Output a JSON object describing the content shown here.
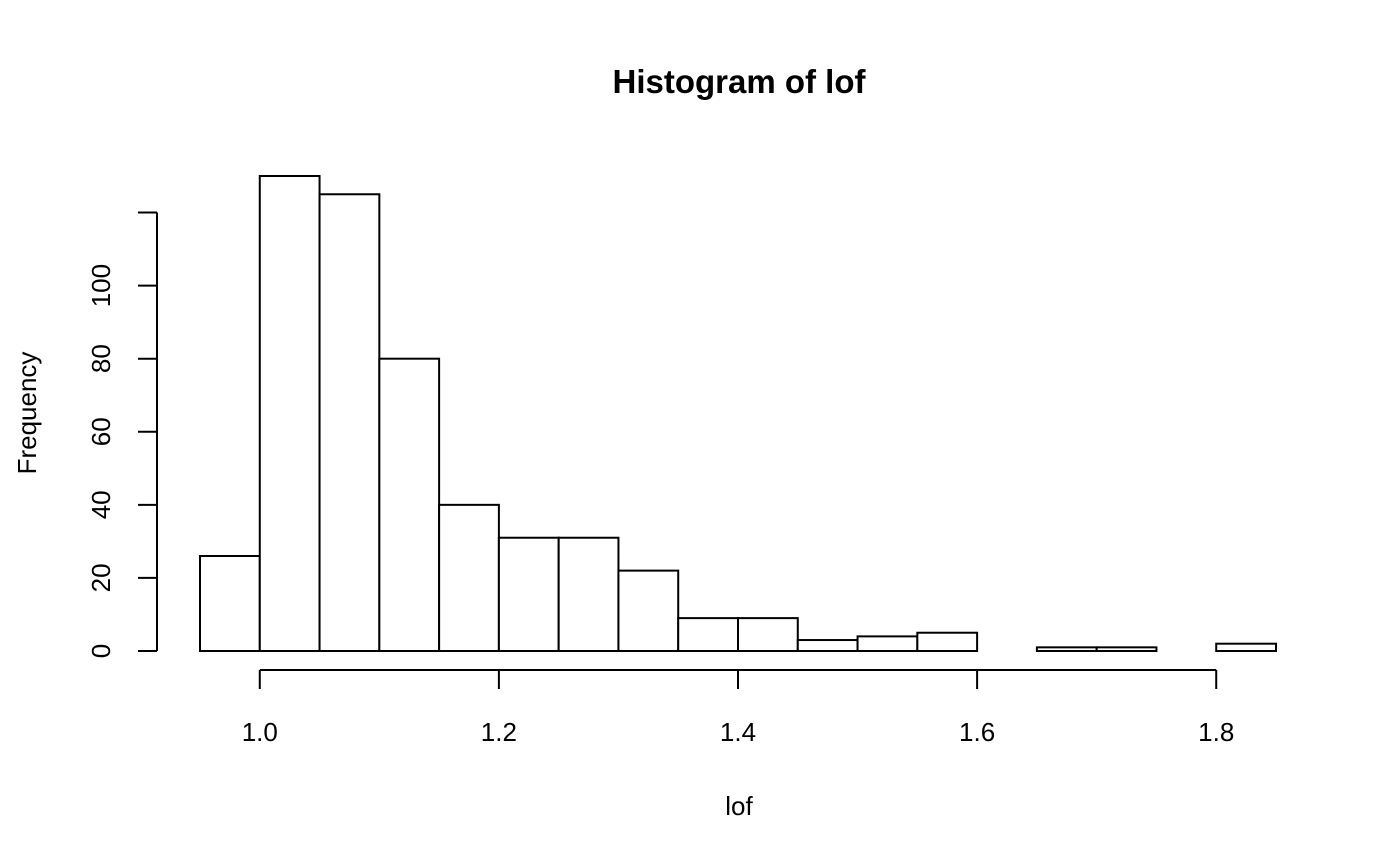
{
  "chart_data": {
    "type": "bar",
    "title": "Histogram of lof",
    "xlabel": "lof",
    "ylabel": "Frequency",
    "bin_edges": [
      0.95,
      1.0,
      1.05,
      1.1,
      1.15,
      1.2,
      1.25,
      1.3,
      1.35,
      1.4,
      1.45,
      1.5,
      1.55,
      1.6,
      1.65,
      1.7,
      1.75,
      1.8,
      1.85
    ],
    "values": [
      26,
      130,
      125,
      80,
      40,
      31,
      31,
      22,
      9,
      9,
      3,
      4,
      5,
      0,
      1,
      1,
      0,
      2
    ],
    "xlim": [
      0.95,
      1.85
    ],
    "ylim": [
      0,
      130
    ],
    "x_ticks": [
      {
        "value": 1.0,
        "label": "1.0"
      },
      {
        "value": 1.2,
        "label": "1.2"
      },
      {
        "value": 1.4,
        "label": "1.4"
      },
      {
        "value": 1.6,
        "label": "1.6"
      },
      {
        "value": 1.8,
        "label": "1.8"
      }
    ],
    "y_ticks": [
      {
        "value": 0,
        "label": "0"
      },
      {
        "value": 20,
        "label": "20"
      },
      {
        "value": 40,
        "label": "40"
      },
      {
        "value": 60,
        "label": "60"
      },
      {
        "value": 80,
        "label": "80"
      },
      {
        "value": 100,
        "label": "100"
      },
      {
        "value": 120,
        "label": ""
      }
    ],
    "grid": false,
    "colors": {
      "bar_fill": "#ffffff",
      "bar_stroke": "#000000",
      "axis": "#000000"
    }
  }
}
